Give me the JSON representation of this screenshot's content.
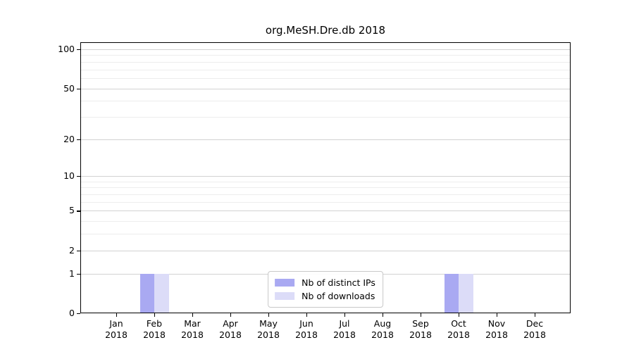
{
  "chart_data": {
    "type": "bar",
    "title": "org.MeSH.Dre.db 2018",
    "categories": [
      "Jan",
      "Feb",
      "Mar",
      "Apr",
      "May",
      "Jun",
      "Jul",
      "Aug",
      "Sep",
      "Oct",
      "Nov",
      "Dec"
    ],
    "x_year": "2018",
    "series": [
      {
        "name": "Nb of distinct IPs",
        "color": "#a9a9f2",
        "values": [
          0,
          1,
          0,
          0,
          0,
          0,
          0,
          0,
          0,
          1,
          0,
          0
        ]
      },
      {
        "name": "Nb of downloads",
        "color": "#dcdcf8",
        "values": [
          0,
          1,
          0,
          0,
          0,
          0,
          0,
          0,
          0,
          1,
          0,
          0
        ]
      }
    ],
    "yscale": "log1p",
    "ylim": [
      0,
      113.2
    ],
    "yticks": [
      0,
      1,
      2,
      5,
      10,
      20,
      50,
      100
    ],
    "yticks_minor": [
      3,
      4,
      6,
      7,
      8,
      9,
      30,
      40,
      60,
      70,
      80,
      90
    ],
    "grid": "both",
    "legend_position": "lower center"
  }
}
